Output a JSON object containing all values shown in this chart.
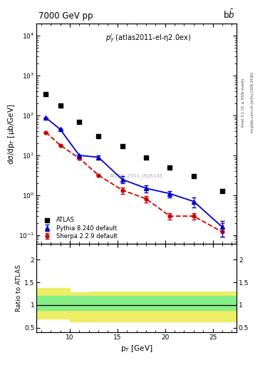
{
  "title_left": "7000 GeV pp",
  "title_right": "b$\\bar{b}$",
  "annotation": "$p_T^l$ (atlas2011-el-η2.0ex)",
  "watermark": "ATLAS_2011_I926145",
  "right_label1": "Rivet 3.1.10, ≥ 500k events",
  "right_label2": "mcplots.cern.ch [arXiv:1306.3436]",
  "ylabel_main": "dσ/dp$_T$ [μb/GeV]",
  "ylabel_ratio": "Ratio to ATLAS",
  "xlabel": "p$_T$ [GeV]",
  "atlas_x": [
    7.5,
    9.0,
    11.0,
    13.0,
    15.5,
    18.0,
    20.5,
    23.0,
    26.0
  ],
  "atlas_y": [
    350,
    175,
    70,
    30,
    17,
    9.0,
    5.0,
    3.0,
    1.3
  ],
  "pythia_x": [
    7.5,
    9.0,
    11.0,
    13.0,
    15.5,
    18.0,
    20.5,
    23.0,
    26.0
  ],
  "pythia_y": [
    88,
    45,
    10.0,
    9.0,
    2.5,
    1.5,
    1.1,
    0.7,
    0.16
  ],
  "pythia_yerr_lo": [
    0,
    0,
    0,
    0.8,
    0.5,
    0.3,
    0.2,
    0.2,
    0.07
  ],
  "pythia_yerr_hi": [
    0,
    0,
    0,
    0.8,
    0.5,
    0.3,
    0.2,
    0.2,
    0.07
  ],
  "pythia_color": "#0000cc",
  "sherpa_x": [
    7.5,
    9.0,
    11.0,
    13.0,
    15.5,
    18.0,
    20.5,
    23.0,
    26.0
  ],
  "sherpa_y": [
    38,
    18,
    8.5,
    3.2,
    1.35,
    0.82,
    0.3,
    0.3,
    0.12
  ],
  "sherpa_yerr_lo": [
    0,
    0,
    0,
    0,
    0.25,
    0.15,
    0.05,
    0.05,
    0.03
  ],
  "sherpa_yerr_hi": [
    0,
    0,
    0,
    0,
    0.25,
    0.15,
    0.05,
    0.05,
    0.08
  ],
  "sherpa_color": "#cc0000",
  "ratio_x_edges": [
    6.5,
    8.0,
    10.0,
    12.0,
    14.5,
    17.0,
    19.5,
    22.0,
    24.5,
    27.5
  ],
  "green_band_upper": [
    1.2,
    1.2,
    1.2,
    1.2,
    1.2,
    1.2,
    1.2,
    1.2,
    1.2
  ],
  "green_band_lower": [
    0.88,
    0.88,
    0.88,
    0.88,
    0.88,
    0.88,
    0.88,
    0.88,
    0.88
  ],
  "yellow_band_upper": [
    1.38,
    1.38,
    1.28,
    1.3,
    1.3,
    1.3,
    1.3,
    1.3,
    1.3
  ],
  "yellow_band_lower": [
    0.7,
    0.7,
    0.63,
    0.63,
    0.63,
    0.63,
    0.63,
    0.63,
    0.63
  ],
  "ylim_main": [
    0.06,
    20000
  ],
  "ylim_ratio": [
    0.4,
    2.35
  ],
  "xlim": [
    6.5,
    27.5
  ],
  "green_color": "#86ee86",
  "yellow_color": "#eeee66"
}
